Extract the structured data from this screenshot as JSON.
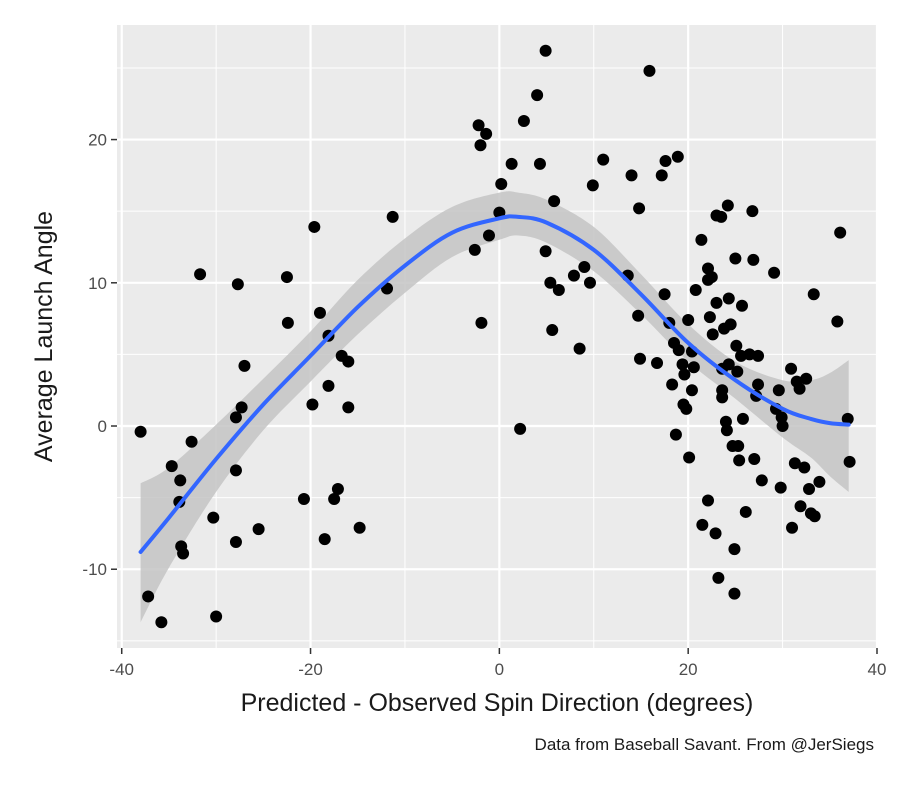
{
  "chart_data": {
    "type": "scatter",
    "xlabel": "Predicted - Observed Spin Direction (degrees)",
    "ylabel": "Average Launch Angle",
    "caption": "Data from Baseball Savant. From @JerSiegs",
    "xlim": [
      -40.5,
      40
    ],
    "ylim": [
      -15.5,
      28
    ],
    "x_ticks": [
      -40,
      -20,
      0,
      20,
      40
    ],
    "y_ticks": [
      -10,
      0,
      10,
      20
    ],
    "x_tick_labels": [
      "-40",
      "-20",
      "0",
      "20",
      "40"
    ],
    "y_tick_labels": [
      "-10",
      "0",
      "10",
      "20"
    ],
    "grid": true,
    "colors": {
      "panel": "#ebebeb",
      "grid": "#ffffff",
      "points": "#000000",
      "smooth": "#3366ff",
      "band": "#c4c4c4"
    },
    "points": [
      {
        "x": -38,
        "y": -0.4
      },
      {
        "x": -37.2,
        "y": -11.9
      },
      {
        "x": -35.8,
        "y": -13.7
      },
      {
        "x": -34.7,
        "y": -2.8
      },
      {
        "x": -33.8,
        "y": -3.8
      },
      {
        "x": -33.9,
        "y": -5.3
      },
      {
        "x": -33.7,
        "y": -8.4
      },
      {
        "x": -33.5,
        "y": -8.9
      },
      {
        "x": -32.6,
        "y": -1.1
      },
      {
        "x": -31.7,
        "y": 10.6
      },
      {
        "x": -30.3,
        "y": -6.4
      },
      {
        "x": -30,
        "y": -13.3
      },
      {
        "x": -27.9,
        "y": -3.1
      },
      {
        "x": -27.9,
        "y": 0.6
      },
      {
        "x": -27.9,
        "y": -8.1
      },
      {
        "x": -27.7,
        "y": 9.9
      },
      {
        "x": -27.3,
        "y": 1.3
      },
      {
        "x": -27,
        "y": 4.2
      },
      {
        "x": -25.5,
        "y": -7.2
      },
      {
        "x": -22.5,
        "y": 10.4
      },
      {
        "x": -22.4,
        "y": 7.2
      },
      {
        "x": -20.7,
        "y": -5.1
      },
      {
        "x": -19.8,
        "y": 1.5
      },
      {
        "x": -19.6,
        "y": 13.9
      },
      {
        "x": -19,
        "y": 7.9
      },
      {
        "x": -18.5,
        "y": -7.9
      },
      {
        "x": -18.1,
        "y": 6.3
      },
      {
        "x": -18.1,
        "y": 2.8
      },
      {
        "x": -17.5,
        "y": -5.1
      },
      {
        "x": -17.1,
        "y": -4.4
      },
      {
        "x": -16.7,
        "y": 4.9
      },
      {
        "x": -16,
        "y": 4.5
      },
      {
        "x": -16,
        "y": 1.3
      },
      {
        "x": -14.8,
        "y": -7.1
      },
      {
        "x": -11.9,
        "y": 9.6
      },
      {
        "x": -11.3,
        "y": 14.6
      },
      {
        "x": -2.6,
        "y": 12.3
      },
      {
        "x": -2.2,
        "y": 21
      },
      {
        "x": -2,
        "y": 19.6
      },
      {
        "x": -1.9,
        "y": 7.2
      },
      {
        "x": -1.4,
        "y": 20.4
      },
      {
        "x": -1.1,
        "y": 13.3
      },
      {
        "x": 0,
        "y": 14.9
      },
      {
        "x": 0.2,
        "y": 16.9
      },
      {
        "x": 1.3,
        "y": 18.3
      },
      {
        "x": 2.2,
        "y": -0.2
      },
      {
        "x": 2.6,
        "y": 21.3
      },
      {
        "x": 4,
        "y": 23.1
      },
      {
        "x": 4.3,
        "y": 18.3
      },
      {
        "x": 4.9,
        "y": 26.2
      },
      {
        "x": 4.9,
        "y": 12.2
      },
      {
        "x": 5.4,
        "y": 10
      },
      {
        "x": 5.6,
        "y": 6.7
      },
      {
        "x": 5.8,
        "y": 15.7
      },
      {
        "x": 6.3,
        "y": 9.5
      },
      {
        "x": 7.9,
        "y": 10.5
      },
      {
        "x": 8.5,
        "y": 5.4
      },
      {
        "x": 9,
        "y": 11.1
      },
      {
        "x": 9.6,
        "y": 10
      },
      {
        "x": 9.9,
        "y": 16.8
      },
      {
        "x": 11,
        "y": 18.6
      },
      {
        "x": 13.6,
        "y": 10.5
      },
      {
        "x": 14,
        "y": 17.5
      },
      {
        "x": 14.7,
        "y": 7.7
      },
      {
        "x": 14.8,
        "y": 15.2
      },
      {
        "x": 14.9,
        "y": 4.7
      },
      {
        "x": 15.9,
        "y": 24.8
      },
      {
        "x": 16.7,
        "y": 4.4
      },
      {
        "x": 17.2,
        "y": 17.5
      },
      {
        "x": 17.5,
        "y": 9.2
      },
      {
        "x": 17.6,
        "y": 18.5
      },
      {
        "x": 18,
        "y": 7.2
      },
      {
        "x": 18.3,
        "y": 2.9
      },
      {
        "x": 18.5,
        "y": 5.8
      },
      {
        "x": 18.7,
        "y": -0.6
      },
      {
        "x": 18.9,
        "y": 18.8
      },
      {
        "x": 19,
        "y": 5.3
      },
      {
        "x": 19.4,
        "y": 4.3
      },
      {
        "x": 19.5,
        "y": 1.5
      },
      {
        "x": 19.6,
        "y": 3.6
      },
      {
        "x": 19.8,
        "y": 1.2
      },
      {
        "x": 20,
        "y": 7.4
      },
      {
        "x": 20.1,
        "y": -2.2
      },
      {
        "x": 20.4,
        "y": 2.5
      },
      {
        "x": 20.4,
        "y": 5.2
      },
      {
        "x": 20.6,
        "y": 4.1
      },
      {
        "x": 20.8,
        "y": 9.5
      },
      {
        "x": 21.4,
        "y": 13
      },
      {
        "x": 21.5,
        "y": -6.9
      },
      {
        "x": 22.1,
        "y": 10.2
      },
      {
        "x": 22.1,
        "y": 11
      },
      {
        "x": 22.1,
        "y": -5.2
      },
      {
        "x": 22.3,
        "y": 7.6
      },
      {
        "x": 22.5,
        "y": 10.4
      },
      {
        "x": 22.6,
        "y": 6.4
      },
      {
        "x": 22.9,
        "y": -7.5
      },
      {
        "x": 23,
        "y": 14.7
      },
      {
        "x": 23,
        "y": 8.6
      },
      {
        "x": 23.2,
        "y": -10.6
      },
      {
        "x": 23.5,
        "y": 14.6
      },
      {
        "x": 23.6,
        "y": 4
      },
      {
        "x": 23.6,
        "y": 2
      },
      {
        "x": 23.6,
        "y": 2.5
      },
      {
        "x": 23.8,
        "y": 6.8
      },
      {
        "x": 24,
        "y": 0.3
      },
      {
        "x": 24.1,
        "y": -0.3
      },
      {
        "x": 24.2,
        "y": 15.4
      },
      {
        "x": 24.3,
        "y": 8.9
      },
      {
        "x": 24.3,
        "y": 4.3
      },
      {
        "x": 24.5,
        "y": 7.1
      },
      {
        "x": 24.7,
        "y": -1.4
      },
      {
        "x": 24.9,
        "y": -8.6
      },
      {
        "x": 24.9,
        "y": -11.7
      },
      {
        "x": 25,
        "y": 11.7
      },
      {
        "x": 25.1,
        "y": 5.6
      },
      {
        "x": 25.2,
        "y": 3.8
      },
      {
        "x": 25.3,
        "y": -1.4
      },
      {
        "x": 25.4,
        "y": -2.4
      },
      {
        "x": 25.6,
        "y": 4.9
      },
      {
        "x": 25.7,
        "y": 8.4
      },
      {
        "x": 25.8,
        "y": 0.5
      },
      {
        "x": 26.1,
        "y": -6
      },
      {
        "x": 26.5,
        "y": 5
      },
      {
        "x": 26.8,
        "y": 15
      },
      {
        "x": 26.9,
        "y": 11.6
      },
      {
        "x": 27,
        "y": -2.3
      },
      {
        "x": 27.2,
        "y": 2.1
      },
      {
        "x": 27.4,
        "y": 2.9
      },
      {
        "x": 27.4,
        "y": 4.9
      },
      {
        "x": 27.8,
        "y": -3.8
      },
      {
        "x": 29.1,
        "y": 10.7
      },
      {
        "x": 29.3,
        "y": 1.2
      },
      {
        "x": 29.6,
        "y": 2.5
      },
      {
        "x": 29.8,
        "y": -4.3
      },
      {
        "x": 29.9,
        "y": 0.6
      },
      {
        "x": 30,
        "y": 0
      },
      {
        "x": 30.9,
        "y": 4
      },
      {
        "x": 31,
        "y": -7.1
      },
      {
        "x": 31.3,
        "y": -2.6
      },
      {
        "x": 31.5,
        "y": 3.1
      },
      {
        "x": 31.8,
        "y": 2.6
      },
      {
        "x": 31.9,
        "y": -5.6
      },
      {
        "x": 32.3,
        "y": -2.9
      },
      {
        "x": 32.5,
        "y": 3.3
      },
      {
        "x": 32.8,
        "y": -4.4
      },
      {
        "x": 33,
        "y": -6.1
      },
      {
        "x": 33.3,
        "y": 9.2
      },
      {
        "x": 33.4,
        "y": -6.3
      },
      {
        "x": 33.9,
        "y": -3.9
      },
      {
        "x": 35.8,
        "y": 7.3
      },
      {
        "x": 36.1,
        "y": 13.5
      },
      {
        "x": 36.9,
        "y": 0.5
      },
      {
        "x": 37.1,
        "y": -2.5
      }
    ],
    "smooth": {
      "method": "loess",
      "x": [
        -38,
        -35,
        -30,
        -25,
        -20,
        -15,
        -10,
        -5,
        0,
        2,
        5,
        10,
        15,
        20,
        25,
        30,
        33,
        35,
        37
      ],
      "y": [
        -8.8,
        -6.4,
        -2.3,
        1.5,
        4.9,
        8.3,
        11.2,
        13.5,
        14.5,
        14.6,
        14.2,
        12.3,
        9.2,
        5.8,
        3.2,
        1.2,
        0.5,
        0.2,
        0.1
      ],
      "lower": [
        -13.7,
        -9.9,
        -4.6,
        -0.3,
        3.1,
        6.4,
        9.3,
        11.8,
        13.0,
        13.3,
        12.8,
        10.8,
        7.8,
        4.5,
        1.9,
        -0.8,
        -2.2,
        -3.5,
        -4.6
      ],
      "upper": [
        -4.0,
        -2.9,
        0.1,
        3.3,
        6.6,
        10.2,
        13.1,
        15.3,
        16.3,
        16.3,
        15.8,
        13.9,
        10.6,
        7.1,
        4.5,
        3.2,
        3.2,
        3.7,
        4.6
      ]
    }
  }
}
